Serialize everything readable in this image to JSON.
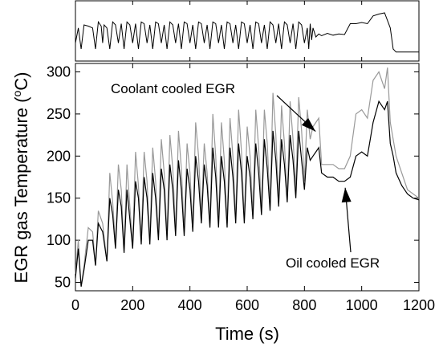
{
  "chart_data": [
    {
      "type": "line",
      "panel": "top",
      "xlim": [
        0,
        1200
      ],
      "series": [
        {
          "x": [
            0,
            10,
            20,
            30,
            45,
            60,
            70,
            80,
            90,
            95,
            100,
            110,
            120,
            130,
            140,
            150,
            160,
            170,
            180,
            190,
            200,
            210,
            220,
            230,
            240,
            250,
            260,
            270,
            280,
            290,
            300,
            310,
            320,
            330,
            340,
            350,
            360,
            370,
            380,
            390,
            400,
            410,
            420,
            430,
            440,
            450,
            460,
            470,
            480,
            490,
            500,
            510,
            520,
            530,
            540,
            550,
            560,
            570,
            580,
            590,
            600,
            610,
            620,
            630,
            640,
            650,
            660,
            670,
            680,
            690,
            700,
            710,
            720,
            730,
            740,
            750,
            760,
            770,
            780,
            790,
            800,
            810,
            815,
            820,
            825,
            830,
            840,
            850,
            860,
            880,
            900,
            920,
            940,
            960,
            980,
            1000,
            1020,
            1040,
            1060,
            1080,
            1100,
            1110,
            1120,
            1140,
            1160,
            1180,
            1200
          ],
          "y": [
            0.3,
            0.55,
            0.2,
            0.6,
            0.58,
            0.55,
            0.2,
            0.65,
            0.58,
            0.3,
            0.6,
            0.55,
            0.2,
            0.65,
            0.6,
            0.3,
            0.62,
            0.2,
            0.65,
            0.6,
            0.3,
            0.62,
            0.2,
            0.65,
            0.62,
            0.3,
            0.6,
            0.2,
            0.65,
            0.62,
            0.3,
            0.6,
            0.2,
            0.65,
            0.6,
            0.3,
            0.62,
            0.2,
            0.65,
            0.62,
            0.3,
            0.6,
            0.2,
            0.65,
            0.62,
            0.3,
            0.6,
            0.2,
            0.65,
            0.62,
            0.3,
            0.6,
            0.2,
            0.65,
            0.62,
            0.3,
            0.6,
            0.2,
            0.65,
            0.62,
            0.3,
            0.6,
            0.2,
            0.65,
            0.62,
            0.3,
            0.6,
            0.2,
            0.65,
            0.6,
            0.3,
            0.62,
            0.2,
            0.65,
            0.6,
            0.3,
            0.62,
            0.2,
            0.65,
            0.6,
            0.3,
            0.55,
            0.2,
            0.62,
            0.35,
            0.55,
            0.4,
            0.45,
            0.42,
            0.46,
            0.43,
            0.45,
            0.44,
            0.62,
            0.62,
            0.64,
            0.62,
            0.75,
            0.78,
            0.8,
            0.55,
            0.2,
            0.15,
            0.15,
            0.15,
            0.15,
            0.15
          ]
        }
      ]
    },
    {
      "type": "line",
      "panel": "main",
      "xlabel": "Time (s)",
      "ylabel_parts": [
        "EGR gas Temperature (",
        "o",
        "C)"
      ],
      "xlim": [
        0,
        1200
      ],
      "ylim": [
        40,
        310
      ],
      "xticks": [
        0,
        200,
        400,
        600,
        800,
        1000,
        1200
      ],
      "yticks": [
        50,
        100,
        150,
        200,
        250,
        300
      ],
      "annotations": [
        {
          "text": "Coolant cooled EGR",
          "points_to": [
            850,
            235
          ]
        },
        {
          "text": "Oil cooled EGR",
          "points_to": [
            920,
            170
          ]
        }
      ],
      "series": [
        {
          "color": "#999999",
          "x": [
            0,
            10,
            20,
            30,
            45,
            60,
            70,
            80,
            95,
            110,
            120,
            130,
            140,
            150,
            160,
            170,
            180,
            190,
            200,
            210,
            220,
            230,
            240,
            250,
            260,
            270,
            280,
            290,
            300,
            310,
            320,
            330,
            340,
            350,
            360,
            370,
            380,
            390,
            400,
            410,
            420,
            430,
            440,
            450,
            460,
            470,
            480,
            490,
            500,
            510,
            520,
            530,
            540,
            550,
            560,
            570,
            580,
            590,
            600,
            610,
            620,
            630,
            640,
            650,
            660,
            670,
            680,
            690,
            700,
            710,
            720,
            730,
            740,
            750,
            760,
            770,
            780,
            790,
            800,
            810,
            820,
            830,
            840,
            850,
            860,
            880,
            900,
            920,
            940,
            960,
            980,
            1000,
            1020,
            1040,
            1060,
            1080,
            1090,
            1100,
            1110,
            1120,
            1140,
            1160,
            1180,
            1200
          ],
          "y": [
            60,
            100,
            45,
            70,
            115,
            110,
            70,
            135,
            120,
            75,
            180,
            145,
            95,
            190,
            160,
            90,
            190,
            140,
            95,
            205,
            165,
            100,
            205,
            170,
            100,
            210,
            170,
            105,
            220,
            180,
            105,
            225,
            185,
            110,
            230,
            185,
            110,
            215,
            180,
            115,
            240,
            200,
            130,
            215,
            180,
            120,
            250,
            200,
            120,
            240,
            195,
            120,
            245,
            200,
            125,
            255,
            205,
            125,
            235,
            200,
            130,
            255,
            210,
            135,
            255,
            215,
            140,
            275,
            225,
            145,
            260,
            215,
            150,
            265,
            220,
            160,
            270,
            230,
            170,
            255,
            220,
            235,
            240,
            245,
            190,
            190,
            190,
            185,
            185,
            200,
            250,
            255,
            245,
            290,
            300,
            280,
            305,
            240,
            220,
            200,
            180,
            160,
            155,
            150
          ]
        },
        {
          "color": "#000000",
          "x": [
            0,
            10,
            20,
            30,
            45,
            60,
            70,
            80,
            95,
            110,
            120,
            130,
            140,
            150,
            160,
            170,
            180,
            190,
            200,
            210,
            220,
            230,
            240,
            250,
            260,
            270,
            280,
            290,
            300,
            310,
            320,
            330,
            340,
            350,
            360,
            370,
            380,
            390,
            400,
            410,
            420,
            430,
            440,
            450,
            460,
            470,
            480,
            490,
            500,
            510,
            520,
            530,
            540,
            550,
            560,
            570,
            580,
            590,
            600,
            610,
            620,
            630,
            640,
            650,
            660,
            670,
            680,
            690,
            700,
            710,
            720,
            730,
            740,
            750,
            760,
            770,
            780,
            790,
            800,
            810,
            820,
            830,
            840,
            850,
            860,
            880,
            900,
            920,
            940,
            960,
            980,
            1000,
            1020,
            1040,
            1060,
            1080,
            1090,
            1100,
            1110,
            1120,
            1140,
            1160,
            1180,
            1200
          ],
          "y": [
            55,
            90,
            45,
            65,
            100,
            100,
            70,
            120,
            110,
            75,
            150,
            130,
            90,
            160,
            140,
            85,
            160,
            125,
            90,
            170,
            150,
            95,
            175,
            150,
            95,
            180,
            150,
            100,
            185,
            160,
            100,
            190,
            160,
            105,
            195,
            160,
            105,
            185,
            160,
            110,
            200,
            170,
            120,
            190,
            165,
            115,
            210,
            175,
            115,
            200,
            170,
            115,
            210,
            175,
            120,
            215,
            180,
            120,
            200,
            175,
            125,
            215,
            180,
            130,
            220,
            185,
            135,
            230,
            195,
            140,
            220,
            190,
            145,
            225,
            195,
            150,
            230,
            195,
            160,
            210,
            195,
            200,
            205,
            210,
            180,
            175,
            175,
            170,
            170,
            175,
            200,
            205,
            200,
            240,
            265,
            255,
            265,
            215,
            200,
            180,
            165,
            155,
            150,
            148
          ]
        }
      ]
    }
  ]
}
